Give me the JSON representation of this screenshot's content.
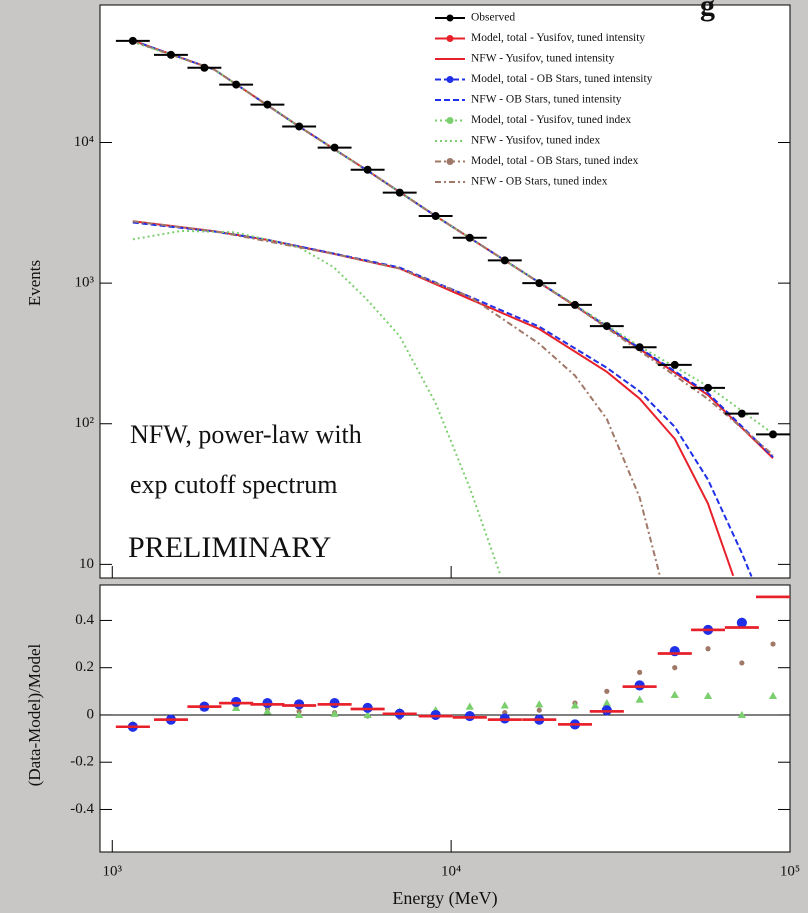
{
  "chart_data": [
    {
      "type": "line",
      "title": "g",
      "ylabel": "Events",
      "log_x": true,
      "log_y": true,
      "xlim": [
        920,
        100000
      ],
      "ylim": [
        8,
        95000
      ],
      "yticks": [
        10,
        {
          "value": 100,
          "label": "10²"
        },
        {
          "value": 1000,
          "label": "10³"
        },
        {
          "value": 10000,
          "label": "10⁴"
        }
      ],
      "legend": "upper right",
      "annotations": [
        "NFW, power-law with",
        "exp cutoff spectrum",
        "PRELIMINARY"
      ],
      "series": [
        {
          "name": "Observed",
          "color": "#000000",
          "mode": "markers",
          "x": [
            1150,
            1490,
            1870,
            2320,
            2870,
            3560,
            4530,
            5670,
            7050,
            9000,
            11350,
            14400,
            18200,
            23200,
            28800,
            36000,
            45700,
            57300,
            72100,
            89100
          ],
          "values": [
            52800,
            42000,
            34000,
            25800,
            18600,
            13000,
            9200,
            6400,
            4400,
            3000,
            2100,
            1450,
            1000,
            700,
            495,
            350,
            262,
            180,
            118,
            84
          ]
        },
        {
          "name": "Model, total - Yusifov, tuned intensity",
          "color": "#e8202a",
          "mode": "lines",
          "line_style": "solid",
          "legend_marker": true,
          "x": [
            1150,
            2000,
            3560,
            5670,
            9000,
            14400,
            23200,
            36000,
            57300,
            89100
          ],
          "values": [
            53000,
            33000,
            13000,
            6300,
            3000,
            1450,
            690,
            340,
            160,
            57
          ]
        },
        {
          "name": "NFW - Yusifov, tuned intensity",
          "color": "#e8202a",
          "mode": "lines",
          "line_style": "solid",
          "legend_marker": false,
          "x": [
            1150,
            2000,
            2870,
            4530,
            7050,
            11350,
            18200,
            28800,
            36000,
            45700,
            57300,
            68000
          ],
          "values": [
            2750,
            2340,
            2030,
            1610,
            1270,
            770,
            472,
            234,
            151,
            78,
            27,
            8.3
          ]
        },
        {
          "name": "Model, total - OB Stars, tuned intensity",
          "color": "#2030e8",
          "mode": "lines",
          "line_style": "dashed",
          "legend_marker": true,
          "x": [
            1150,
            2000,
            3560,
            5670,
            9000,
            14400,
            23200,
            36000,
            57300,
            89100
          ],
          "values": [
            53000,
            33000,
            13000,
            6300,
            3000,
            1450,
            695,
            345,
            165,
            58
          ]
        },
        {
          "name": "NFW - OB Stars, tuned intensity",
          "color": "#2030e8",
          "mode": "lines",
          "line_style": "dashed",
          "legend_marker": false,
          "x": [
            1150,
            2000,
            2870,
            4530,
            7050,
            11350,
            18200,
            28800,
            36000,
            45700,
            57300,
            72100,
            77000
          ],
          "values": [
            2700,
            2330,
            2030,
            1620,
            1290,
            800,
            490,
            250,
            170,
            95,
            40,
            12,
            8.2
          ]
        },
        {
          "name": "Model, total - Yusifov, tuned index",
          "color": "#7ccf6e",
          "mode": "lines",
          "line_style": "dotted",
          "legend_marker": true,
          "x": [
            1150,
            2000,
            3560,
            5670,
            9000,
            14400,
            23200,
            36000,
            57300,
            89100
          ],
          "values": [
            52000,
            33000,
            13000,
            6300,
            3000,
            1450,
            700,
            355,
            185,
            85
          ]
        },
        {
          "name": "NFW - Yusifov, tuned index",
          "color": "#7ccf6e",
          "mode": "lines",
          "line_style": "dotted",
          "legend_marker": false,
          "x": [
            1150,
            1600,
            2300,
            3560,
            4500,
            5600,
            7050,
            9000,
            11350,
            14000
          ],
          "values": [
            2050,
            2350,
            2300,
            1800,
            1300,
            780,
            420,
            140,
            35,
            8.3
          ]
        },
        {
          "name": "Model, total - OB Stars, tuned index",
          "color": "#a07868",
          "mode": "lines",
          "line_style": "dashdot",
          "legend_marker": true,
          "x": [
            1150,
            2000,
            3560,
            5670,
            9000,
            14400,
            23200,
            36000,
            57300,
            89100
          ],
          "values": [
            52500,
            33000,
            13000,
            6300,
            3000,
            1450,
            690,
            330,
            150,
            60
          ]
        },
        {
          "name": "NFW - OB Stars, tuned index",
          "color": "#a07868",
          "mode": "lines",
          "line_style": "dashdot",
          "legend_marker": false,
          "x": [
            1150,
            2000,
            4530,
            7050,
            11350,
            18200,
            23200,
            28800,
            36000,
            41300
          ],
          "values": [
            2750,
            2340,
            1610,
            1270,
            800,
            370,
            220,
            108,
            30,
            8.3
          ]
        }
      ]
    },
    {
      "type": "scatter",
      "xlabel": "Energy (MeV)",
      "ylabel": "(Data-Model)/Model",
      "log_x": true,
      "xlim": [
        920,
        100000
      ],
      "ylim": [
        -0.58,
        0.55
      ],
      "xticks": [
        {
          "value": 1000,
          "label": "10³"
        },
        {
          "value": 10000,
          "label": "10⁴"
        },
        {
          "value": 100000,
          "label": "10⁵"
        }
      ],
      "yticks": [
        -0.4,
        -0.2,
        0,
        0.2,
        0.4
      ],
      "series": [
        {
          "color": "#a07868",
          "marker": "small",
          "x": [
            1150,
            1490,
            1870,
            2320,
            2870,
            3560,
            4530,
            5670,
            7050,
            9000,
            11350,
            14400,
            18200,
            23200,
            28800,
            36000,
            45700,
            57300,
            72100,
            89100
          ],
          "values": [
            -0.04,
            -0.02,
            0.03,
            0.035,
            0.025,
            0.015,
            0.01,
            -0.005,
            -0.01,
            -0.01,
            -0.005,
            0.01,
            0.02,
            0.05,
            0.1,
            0.18,
            0.2,
            0.28,
            0.22,
            0.3
          ]
        },
        {
          "color": "#7ccf6e",
          "marker": "triangle",
          "x": [
            1150,
            1490,
            1870,
            2320,
            2870,
            3560,
            4530,
            5670,
            7050,
            9000,
            11350,
            14400,
            18200,
            23200,
            28800,
            36000,
            45700,
            57300,
            72100,
            89100
          ],
          "values": [
            -0.04,
            -0.02,
            0.03,
            0.03,
            0.015,
            0.0,
            0.005,
            0.0,
            0.015,
            0.02,
            0.035,
            0.04,
            0.045,
            0.04,
            0.05,
            0.065,
            0.085,
            0.08,
            0.0,
            0.08
          ]
        },
        {
          "color": "#2030e8",
          "marker": "circle",
          "x": [
            1150,
            1490,
            1870,
            2320,
            2870,
            3560,
            4530,
            5670,
            7050,
            9000,
            11350,
            14400,
            18200,
            23200,
            28800,
            36000,
            45700,
            57300,
            72100
          ],
          "values": [
            -0.05,
            -0.02,
            0.035,
            0.055,
            0.05,
            0.045,
            0.05,
            0.03,
            0.005,
            0.0,
            -0.005,
            -0.015,
            -0.02,
            -0.04,
            0.02,
            0.125,
            0.27,
            0.36,
            0.39
          ]
        },
        {
          "color": "#e8202a",
          "marker": "bar",
          "x": [
            1150,
            1490,
            1870,
            2320,
            2870,
            3560,
            4530,
            5670,
            7050,
            9000,
            11350,
            14400,
            18200,
            23200,
            28800,
            36000,
            45700,
            57300,
            72100,
            89100
          ],
          "values": [
            -0.05,
            -0.02,
            0.035,
            0.05,
            0.045,
            0.04,
            0.045,
            0.025,
            0.005,
            -0.005,
            -0.01,
            -0.02,
            -0.02,
            -0.04,
            0.015,
            0.12,
            0.26,
            0.36,
            0.37,
            0.5
          ]
        }
      ]
    }
  ]
}
